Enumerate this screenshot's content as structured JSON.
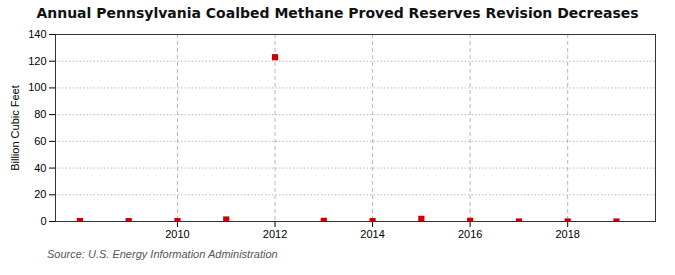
{
  "chart_data": {
    "type": "scatter",
    "title": "Annual Pennsylvania Coalbed Methane Proved Reserves Revision Decreases",
    "ylabel": "Billion Cubic Feet",
    "annotations": [
      "Source: U.S. Energy Information Administration"
    ],
    "x": [
      2008,
      2009,
      2010,
      2011,
      2012,
      2013,
      2014,
      2015,
      2016,
      2017,
      2018,
      2019
    ],
    "values": [
      0.3,
      0.3,
      0.3,
      1.5,
      123.0,
      0.5,
      0.3,
      2.0,
      0.5,
      0.0,
      0.0,
      0.0
    ],
    "color": "#cc0000",
    "marker": "square",
    "xlim": [
      2007.5,
      2019.8
    ],
    "xticks": [
      2010,
      2012,
      2014,
      2016,
      2018
    ],
    "ylim": [
      0,
      140
    ],
    "yticks": [
      0,
      20,
      40,
      60,
      80,
      100,
      120,
      140
    ],
    "grid": true
  }
}
